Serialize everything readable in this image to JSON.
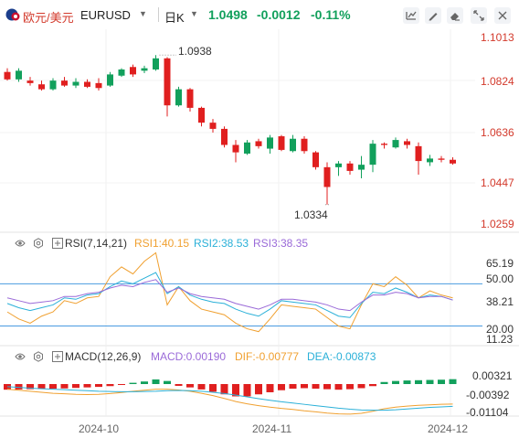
{
  "header": {
    "symbol_cn": "欧元/美元",
    "symbol_en": "EURUSD",
    "period": "日K",
    "price": "1.0498",
    "change": "-0.0012",
    "change_pct": "-0.11%",
    "icons": [
      "flag-icon",
      "caret-down-icon",
      "chart-settings-icon",
      "draw-icon",
      "eraser-icon",
      "expand-icon",
      "close-icon"
    ]
  },
  "price_chart": {
    "y_ticks": [
      "1.1013",
      "1.0824",
      "1.0636",
      "1.0447",
      "1.0259"
    ],
    "high_label": "1.0938",
    "low_label": "1.0334",
    "colors": {
      "up": "#12a05c",
      "down": "#e01f1f"
    },
    "candles": [
      {
        "o": 1.087,
        "h": 1.0885,
        "l": 1.0835,
        "c": 1.084
      },
      {
        "o": 1.084,
        "h": 1.0885,
        "l": 1.083,
        "c": 1.0875
      },
      {
        "o": 1.0835,
        "h": 1.085,
        "l": 1.0815,
        "c": 1.0825
      },
      {
        "o": 1.082,
        "h": 1.0835,
        "l": 1.0795,
        "c": 1.08
      },
      {
        "o": 1.08,
        "h": 1.0845,
        "l": 1.0795,
        "c": 1.0835
      },
      {
        "o": 1.0835,
        "h": 1.085,
        "l": 1.081,
        "c": 1.0815
      },
      {
        "o": 1.0815,
        "h": 1.0845,
        "l": 1.0805,
        "c": 1.083
      },
      {
        "o": 1.083,
        "h": 1.084,
        "l": 1.0805,
        "c": 1.081
      },
      {
        "o": 1.0825,
        "h": 1.0845,
        "l": 1.0795,
        "c": 1.0805
      },
      {
        "o": 1.0815,
        "h": 1.087,
        "l": 1.081,
        "c": 1.086
      },
      {
        "o": 1.0855,
        "h": 1.0885,
        "l": 1.085,
        "c": 1.088
      },
      {
        "o": 1.089,
        "h": 1.09,
        "l": 1.085,
        "c": 1.086
      },
      {
        "o": 1.0875,
        "h": 1.0895,
        "l": 1.0865,
        "c": 1.0885
      },
      {
        "o": 1.088,
        "h": 1.0938,
        "l": 1.0875,
        "c": 1.0925
      },
      {
        "o": 1.0925,
        "h": 1.093,
        "l": 1.069,
        "c": 1.0735
      },
      {
        "o": 1.0735,
        "h": 1.081,
        "l": 1.073,
        "c": 1.08
      },
      {
        "o": 1.08,
        "h": 1.0805,
        "l": 1.071,
        "c": 1.0725
      },
      {
        "o": 1.0725,
        "h": 1.073,
        "l": 1.065,
        "c": 1.0665
      },
      {
        "o": 1.0665,
        "h": 1.068,
        "l": 1.0625,
        "c": 1.064
      },
      {
        "o": 1.064,
        "h": 1.065,
        "l": 1.0565,
        "c": 1.0575
      },
      {
        "o": 1.0575,
        "h": 1.0595,
        "l": 1.0505,
        "c": 1.0545
      },
      {
        "o": 1.054,
        "h": 1.0595,
        "l": 1.0535,
        "c": 1.0585
      },
      {
        "o": 1.059,
        "h": 1.06,
        "l": 1.056,
        "c": 1.057
      },
      {
        "o": 1.056,
        "h": 1.0615,
        "l": 1.054,
        "c": 1.0605
      },
      {
        "o": 1.061,
        "h": 1.0615,
        "l": 1.055,
        "c": 1.0555
      },
      {
        "o": 1.055,
        "h": 1.0615,
        "l": 1.0545,
        "c": 1.06
      },
      {
        "o": 1.06,
        "h": 1.061,
        "l": 1.054,
        "c": 1.055
      },
      {
        "o": 1.0545,
        "h": 1.055,
        "l": 1.0475,
        "c": 1.0485
      },
      {
        "o": 1.0485,
        "h": 1.0505,
        "l": 1.0334,
        "c": 1.0405
      },
      {
        "o": 1.0485,
        "h": 1.051,
        "l": 1.045,
        "c": 1.05
      },
      {
        "o": 1.05,
        "h": 1.051,
        "l": 1.0455,
        "c": 1.047
      },
      {
        "o": 1.0475,
        "h": 1.053,
        "l": 1.044,
        "c": 1.0495
      },
      {
        "o": 1.0495,
        "h": 1.0595,
        "l": 1.0465,
        "c": 1.058
      },
      {
        "o": 1.058,
        "h": 1.0585,
        "l": 1.056,
        "c": 1.0575
      },
      {
        "o": 1.0565,
        "h": 1.0605,
        "l": 1.056,
        "c": 1.0595
      },
      {
        "o": 1.059,
        "h": 1.06,
        "l": 1.056,
        "c": 1.0575
      },
      {
        "o": 1.057,
        "h": 1.0585,
        "l": 1.0455,
        "c": 1.051
      },
      {
        "o": 1.0505,
        "h": 1.0535,
        "l": 1.049,
        "c": 1.052
      },
      {
        "o": 1.052,
        "h": 1.053,
        "l": 1.0505,
        "c": 1.0515
      },
      {
        "o": 1.0515,
        "h": 1.0525,
        "l": 1.0495,
        "c": 1.05
      }
    ]
  },
  "rsi": {
    "title": "RSI(7,14,21)",
    "rsi1": "RSI1:40.15",
    "rsi2": "RSI2:38.53",
    "rsi3": "RSI3:38.35",
    "y_ticks": [
      "65.19",
      "50.00",
      "38.21",
      "20.00",
      "11.23"
    ],
    "colors": {
      "rsi1": "#f0a030",
      "rsi2": "#2ab0d8",
      "rsi3": "#9a6ad8",
      "level": "#4a9be0"
    },
    "levels": [
      50,
      20
    ],
    "rsi1_values": [
      30,
      25,
      22,
      27,
      30,
      38,
      36,
      40,
      41,
      55,
      62,
      57,
      66,
      72,
      35,
      48,
      38,
      32,
      30,
      28,
      22,
      18,
      16,
      25,
      35,
      34,
      33,
      32,
      26,
      20,
      18,
      35,
      50,
      48,
      55,
      49,
      40,
      45,
      42,
      40
    ],
    "rsi2_values": [
      36,
      33,
      31,
      33,
      35,
      40,
      39,
      42,
      43,
      48,
      52,
      50,
      54,
      58,
      43,
      48,
      42,
      39,
      37,
      36,
      32,
      29,
      27,
      32,
      38,
      37,
      36,
      35,
      31,
      27,
      26,
      36,
      44,
      43,
      47,
      44,
      40,
      42,
      41,
      38.5
    ],
    "rsi3_values": [
      40,
      38,
      36,
      37,
      38,
      41,
      41,
      43,
      44,
      47,
      49,
      48,
      51,
      53,
      44,
      47,
      43,
      41,
      40,
      39,
      36,
      34,
      32,
      35,
      39,
      39,
      38,
      37,
      35,
      32,
      31,
      37,
      42,
      42,
      44,
      43,
      40,
      41,
      41,
      38.4
    ]
  },
  "macd": {
    "title": "MACD(12,26,9)",
    "macd_label": "MACD:0.00190",
    "dif_label": "DIF:-0.00777",
    "dea_label": "DEA:-0.00873",
    "y_ticks": [
      "0.00321",
      "-0.00392",
      "-0.01104"
    ],
    "colors": {
      "macd": "#9a6ad8",
      "dif": "#f0a030",
      "dea": "#2ab0d8",
      "up": "#12a05c",
      "down": "#e01f1f"
    },
    "hist": [
      -0.0022,
      -0.0021,
      -0.002,
      -0.0019,
      -0.0018,
      -0.0017,
      -0.0015,
      -0.0013,
      -0.0011,
      -0.0008,
      -0.0003,
      0.0005,
      0.001,
      0.0018,
      0.0012,
      -0.0007,
      -0.0013,
      -0.0021,
      -0.003,
      -0.004,
      -0.0048,
      -0.0048,
      -0.004,
      -0.0032,
      -0.0024,
      -0.0018,
      -0.0016,
      -0.0018,
      -0.002,
      -0.0022,
      -0.002,
      -0.0016,
      -0.0008,
      0.0008,
      0.0012,
      0.0014,
      0.0015,
      0.0016,
      0.0017,
      0.0019
    ],
    "dif_values": [
      -0.002,
      -0.0024,
      -0.0028,
      -0.0032,
      -0.0036,
      -0.0038,
      -0.004,
      -0.0041,
      -0.004,
      -0.0037,
      -0.0033,
      -0.0028,
      -0.0024,
      -0.002,
      -0.002,
      -0.0023,
      -0.0028,
      -0.0036,
      -0.0045,
      -0.0056,
      -0.0068,
      -0.0077,
      -0.0084,
      -0.009,
      -0.0095,
      -0.0099,
      -0.0104,
      -0.0108,
      -0.0113,
      -0.0116,
      -0.0117,
      -0.0114,
      -0.0106,
      -0.0096,
      -0.009,
      -0.0086,
      -0.0083,
      -0.0081,
      -0.0079,
      -0.0078
    ],
    "dea_values": [
      -0.001,
      -0.0013,
      -0.0016,
      -0.0018,
      -0.002,
      -0.0022,
      -0.0024,
      -0.0026,
      -0.0028,
      -0.0029,
      -0.003,
      -0.003,
      -0.0029,
      -0.0028,
      -0.0026,
      -0.0025,
      -0.0026,
      -0.0028,
      -0.0032,
      -0.0037,
      -0.0043,
      -0.005,
      -0.0057,
      -0.0063,
      -0.0069,
      -0.0074,
      -0.0079,
      -0.0084,
      -0.0089,
      -0.0094,
      -0.0098,
      -0.0101,
      -0.0102,
      -0.0102,
      -0.01,
      -0.0097,
      -0.0094,
      -0.0091,
      -0.0089,
      -0.0087
    ]
  },
  "x_axis": {
    "labels": [
      "2024-10",
      "2024-11",
      "2024-12"
    ]
  }
}
